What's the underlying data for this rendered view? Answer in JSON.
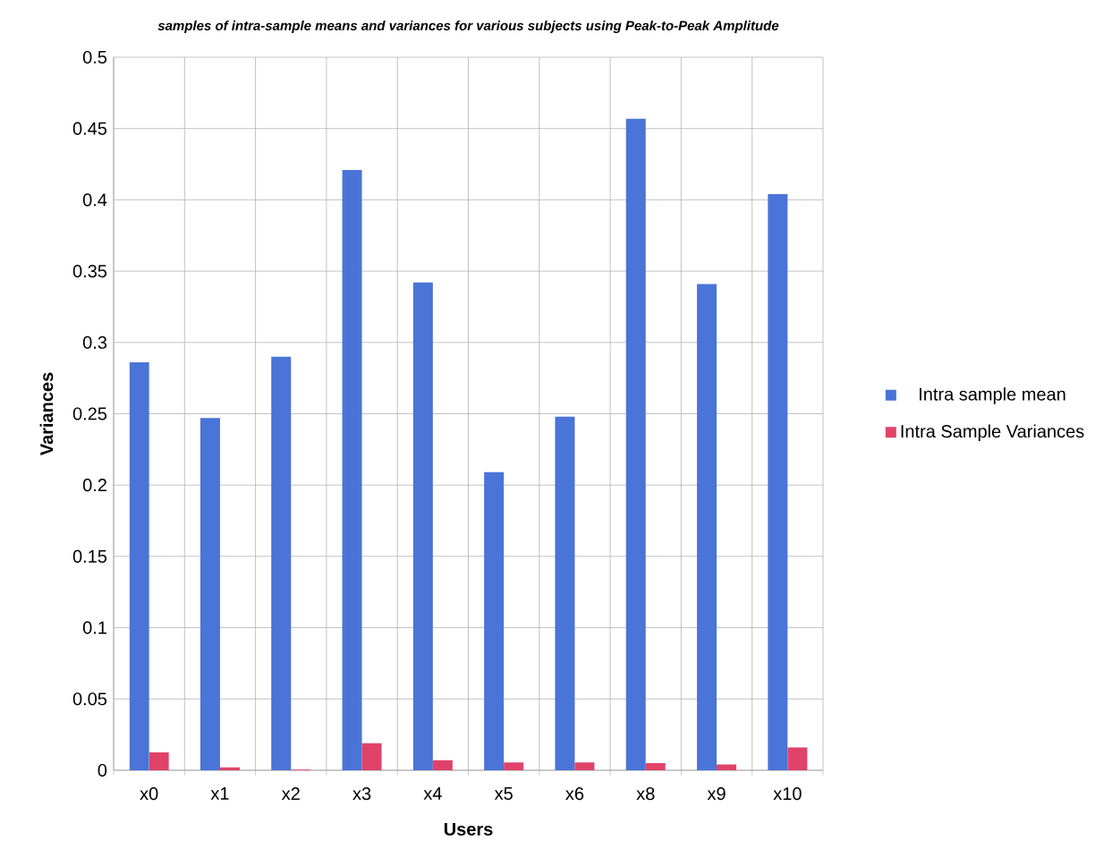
{
  "chart_data": {
    "type": "bar",
    "title": "samples of intra-sample means and variances for various subjects using Peak-to-Peak Amplitude",
    "xlabel": "Users",
    "ylabel": "Variances",
    "categories": [
      "x0",
      "x1",
      "x2",
      "x3",
      "x4",
      "x5",
      "x6",
      "x8",
      "x9",
      "x10"
    ],
    "series": [
      {
        "name": "Intra sample mean",
        "color": "#4a74d8",
        "values": [
          0.286,
          0.247,
          0.29,
          0.421,
          0.342,
          0.209,
          0.248,
          0.457,
          0.341,
          0.404
        ]
      },
      {
        "name": "Intra Sample Variances",
        "color": "#e0436a",
        "values": [
          0.0125,
          0.002,
          0.0005,
          0.019,
          0.007,
          0.0055,
          0.0055,
          0.005,
          0.004,
          0.016
        ]
      }
    ],
    "ylim": [
      0,
      0.5
    ],
    "yticks": [
      0,
      0.05,
      0.1,
      0.15,
      0.2,
      0.25,
      0.3,
      0.35,
      0.4,
      0.45,
      0.5
    ],
    "grid": true,
    "legend": "right"
  }
}
